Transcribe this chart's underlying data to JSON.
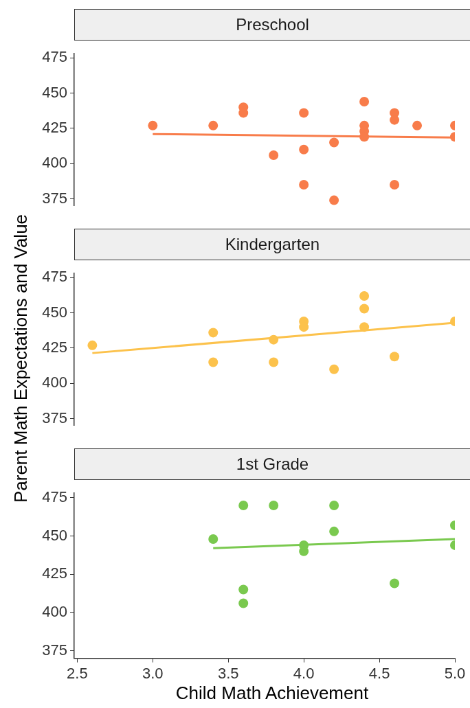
{
  "chart_data": [
    {
      "type": "scatter",
      "title": "Preschool",
      "marker": "circle",
      "grid": false,
      "legend": false,
      "tick_labels": "y",
      "xlim": [
        2.48,
        5.0
      ],
      "ylim": [
        370,
        478
      ],
      "yticks": [
        375,
        400,
        425,
        450,
        475
      ],
      "series": [
        {
          "color": "#f87c4a",
          "x": [
            3.0,
            3.4,
            3.6,
            3.6,
            3.8,
            4.0,
            4.0,
            4.0,
            4.2,
            4.2,
            4.4,
            4.4,
            4.4,
            4.4,
            4.6,
            4.6,
            4.6,
            4.75,
            5.0,
            5.0
          ],
          "values": [
            427,
            427,
            440,
            436,
            406,
            436,
            410,
            385,
            415,
            374,
            444,
            427,
            423,
            419,
            436,
            431,
            385,
            427,
            427,
            419
          ]
        },
        {
          "type": "line",
          "marker": "none",
          "color": "#f87c4a",
          "x": [
            3.0,
            5.0
          ],
          "values": [
            421,
            418.5
          ]
        }
      ]
    },
    {
      "type": "scatter",
      "title": "Kindergarten",
      "ylabel": "Parent Math Expectations and Value",
      "marker": "circle",
      "grid": false,
      "legend": false,
      "tick_labels": "y",
      "xlim": [
        2.48,
        5.0
      ],
      "ylim": [
        370,
        478
      ],
      "yticks": [
        375,
        400,
        425,
        450,
        475
      ],
      "series": [
        {
          "color": "#fcc24c",
          "x": [
            2.6,
            3.4,
            3.4,
            3.8,
            3.8,
            4.0,
            4.0,
            4.2,
            4.4,
            4.4,
            4.4,
            4.6,
            5.0
          ],
          "values": [
            427,
            436,
            415,
            431,
            415,
            444,
            440,
            410,
            462,
            453,
            440,
            419,
            444
          ]
        },
        {
          "type": "line",
          "marker": "none",
          "color": "#fcc24c",
          "x": [
            2.6,
            5.0
          ],
          "values": [
            421.5,
            443
          ]
        }
      ]
    },
    {
      "type": "scatter",
      "title": "1st Grade",
      "xlabel": "Child Math Achievement",
      "marker": "circle",
      "grid": false,
      "legend": false,
      "xlim": [
        2.48,
        5.0
      ],
      "xticks": [
        {
          "value": 2.5,
          "label": "2.5"
        },
        {
          "value": 3,
          "label": "3.0"
        },
        {
          "value": 3.5,
          "label": "3.5"
        },
        {
          "value": 4,
          "label": "4.0"
        },
        {
          "value": 4.5,
          "label": "4.5"
        },
        {
          "value": 5,
          "label": "5.0"
        }
      ],
      "ylim": [
        370,
        478
      ],
      "yticks": [
        375,
        400,
        425,
        450,
        475
      ],
      "series": [
        {
          "color": "#7ac94f",
          "x": [
            3.4,
            3.6,
            3.6,
            3.6,
            3.8,
            4.0,
            4.0,
            4.2,
            4.2,
            4.6,
            5.0,
            5.0
          ],
          "values": [
            448,
            470,
            415,
            406,
            470,
            444,
            440,
            470,
            453,
            419,
            457,
            444
          ]
        },
        {
          "type": "line",
          "marker": "none",
          "color": "#7ac94f",
          "x": [
            3.4,
            5.0
          ],
          "values": [
            442,
            448
          ]
        }
      ]
    }
  ]
}
